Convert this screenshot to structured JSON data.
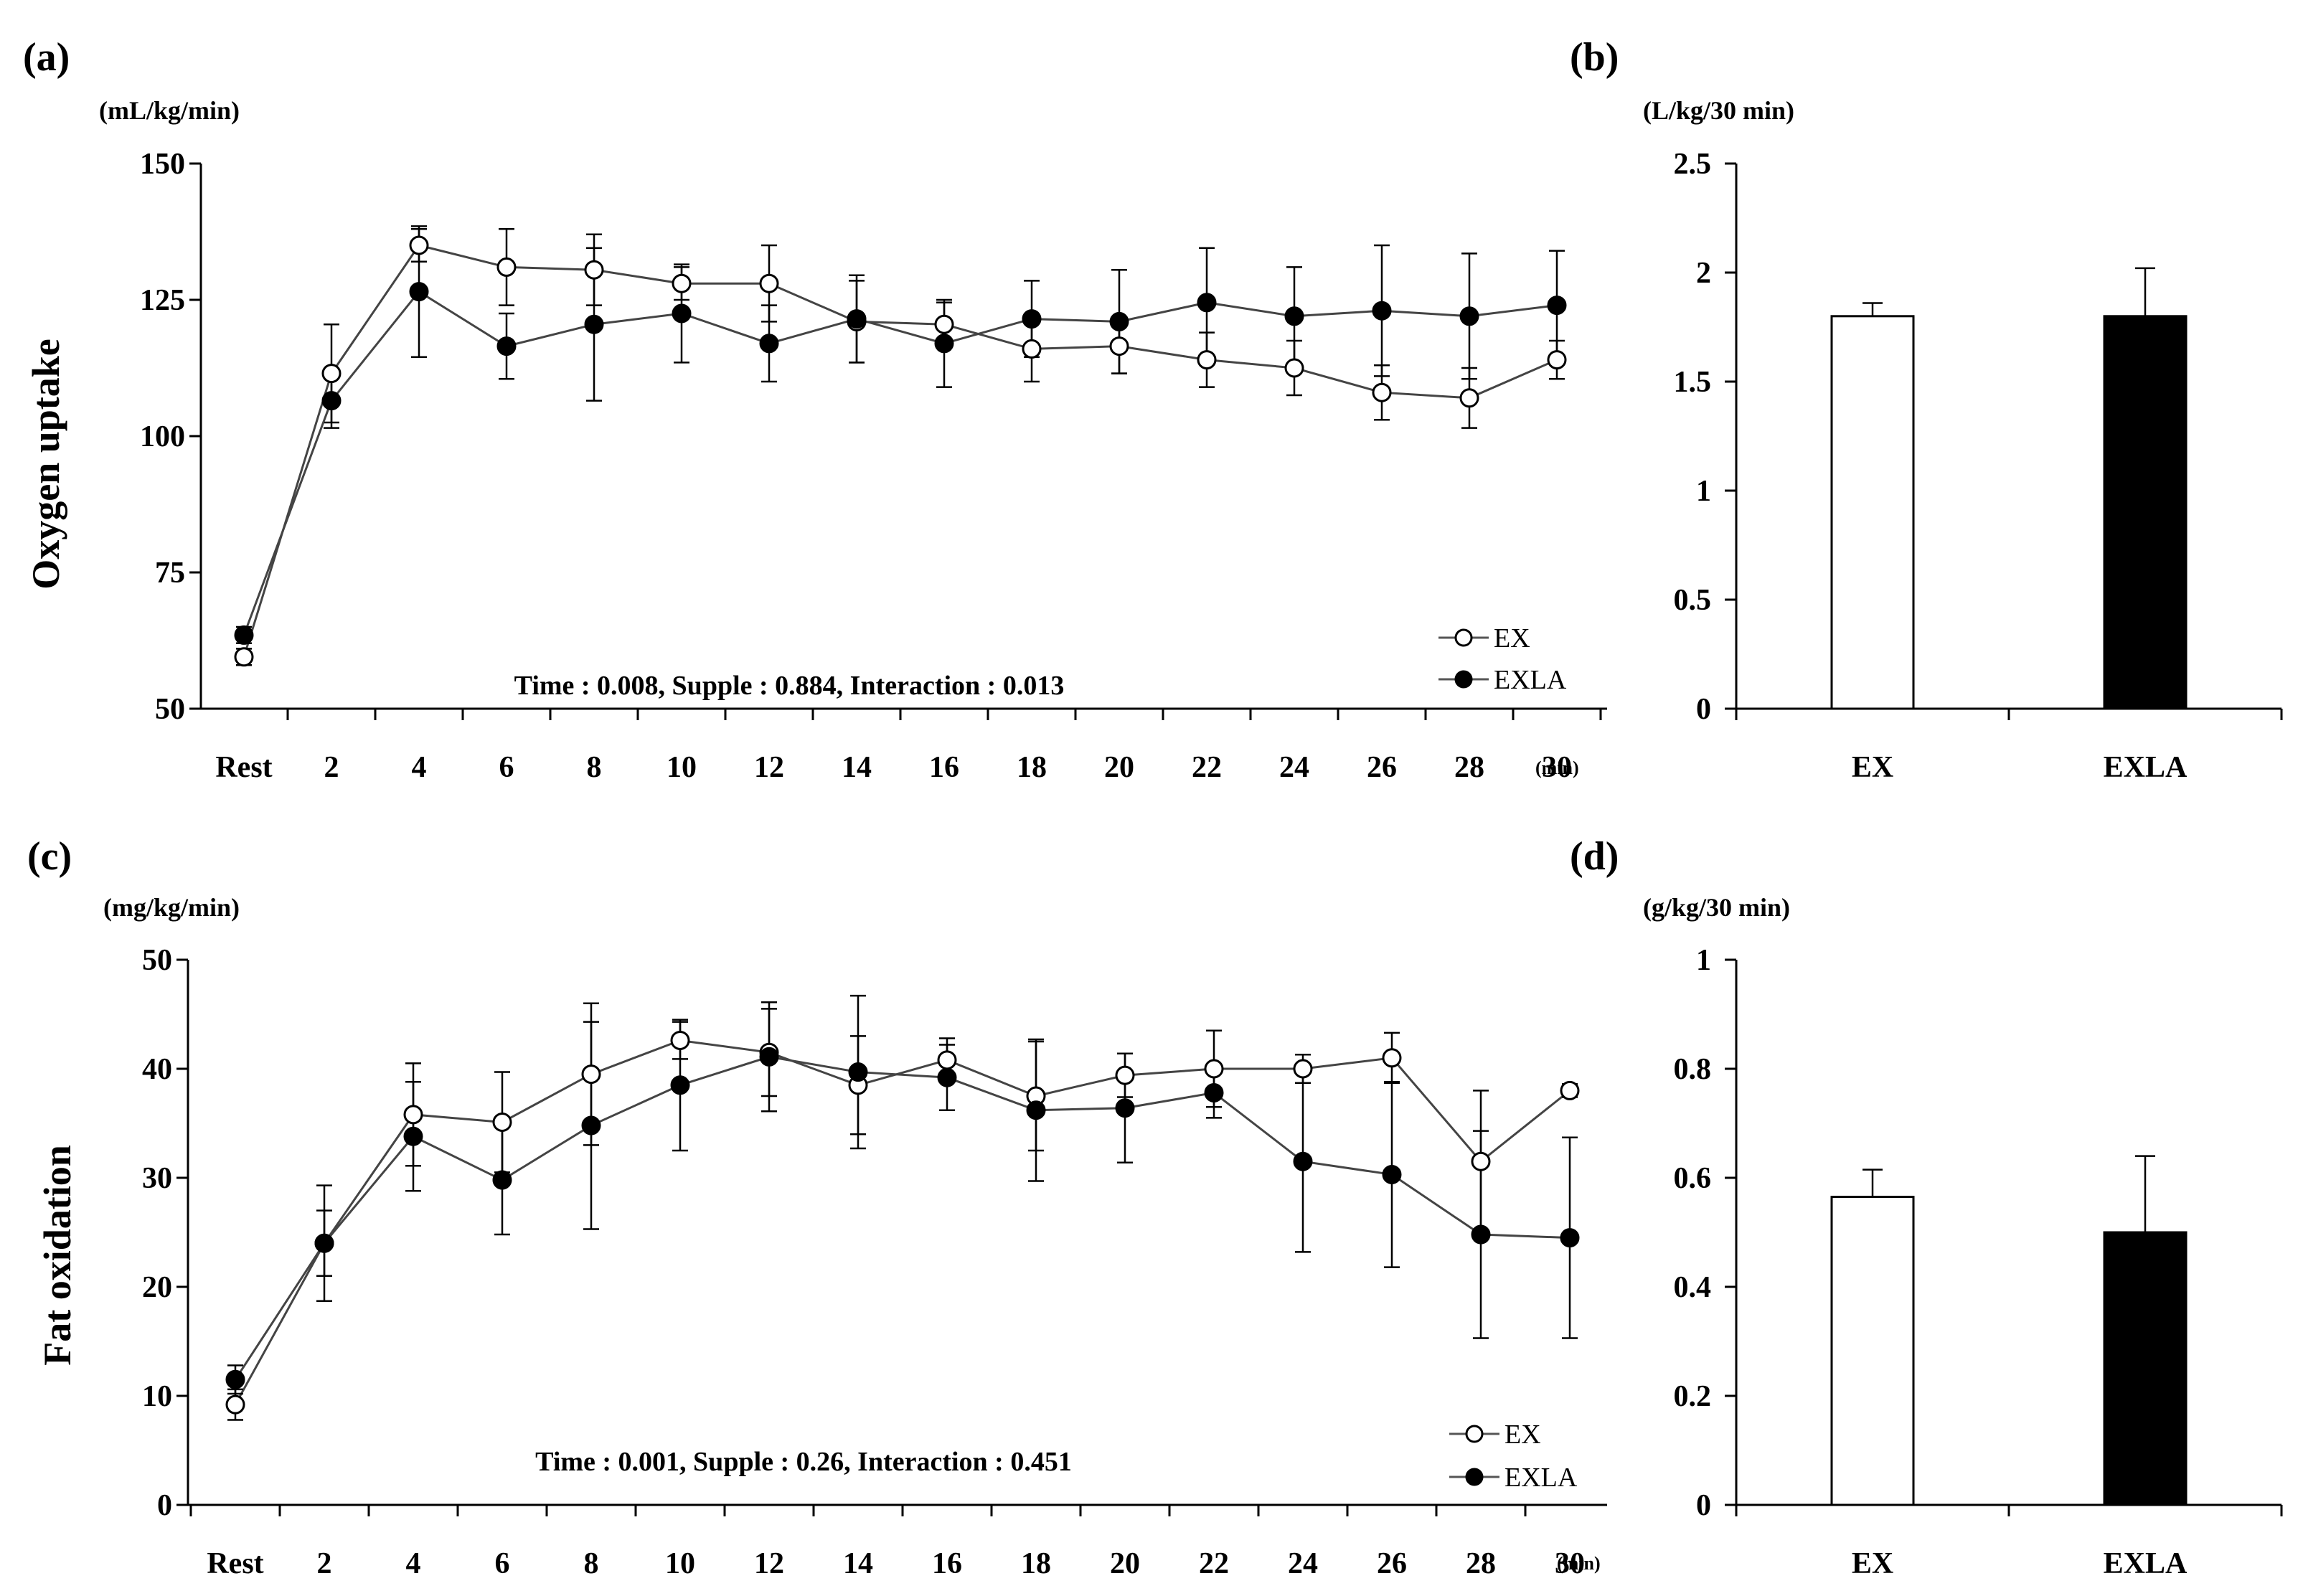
{
  "chart_data": [
    {
      "id": "a",
      "type": "line",
      "panel_label": "(a)",
      "unit_label": "(mL/kg/min)",
      "ylabel": "Oxygen uptake",
      "xlabel": "",
      "x_unit_label": "(min)",
      "categories": [
        "Rest",
        "2",
        "4",
        "6",
        "8",
        "10",
        "12",
        "14",
        "16",
        "18",
        "20",
        "22",
        "24",
        "26",
        "28",
        "30"
      ],
      "ylim": [
        50,
        150
      ],
      "yticks": [
        "50",
        "75",
        "100",
        "125",
        "150"
      ],
      "stats_text": "Time : 0.008,  Supple : 0.884,  Interaction : 0.013",
      "series": [
        {
          "name": "EX",
          "marker": "open",
          "values": [
            59.5,
            111.5,
            135,
            131,
            130.5,
            128,
            128,
            121,
            120.5,
            116,
            116.5,
            114,
            112.5,
            108,
            107,
            114
          ],
          "errors": [
            1.5,
            9,
            3,
            7,
            6.5,
            3,
            7,
            7.5,
            4,
            6,
            5,
            5,
            5,
            5,
            5.5,
            3.5
          ]
        },
        {
          "name": "EXLA",
          "marker": "filled",
          "values": [
            63.5,
            106.5,
            126.5,
            116.5,
            120.5,
            122.5,
            117,
            121.5,
            117,
            121.5,
            121,
            124.5,
            122,
            123,
            122,
            124
          ],
          "errors": [
            1.5,
            5,
            12,
            6,
            14,
            9,
            7,
            8,
            8,
            7,
            9.5,
            10,
            9,
            12,
            11.5,
            10
          ]
        }
      ],
      "legend": [
        "EX",
        "EXLA"
      ]
    },
    {
      "id": "b",
      "type": "bar",
      "panel_label": "(b)",
      "unit_label": "(L/kg/30 min)",
      "categories": [
        "EX",
        "EXLA"
      ],
      "ylim": [
        0,
        2.5
      ],
      "yticks": [
        "0",
        "0.5",
        "1",
        "1.5",
        "2",
        "2.5"
      ],
      "values": [
        1.8,
        1.8
      ],
      "errors": [
        0.06,
        0.22
      ],
      "colors": [
        "#ffffff",
        "#000000"
      ]
    },
    {
      "id": "c",
      "type": "line",
      "panel_label": "(c)",
      "unit_label": "(mg/kg/min)",
      "ylabel": "Fat oxidation",
      "xlabel": "",
      "x_unit_label": "(min)",
      "categories": [
        "Rest",
        "2",
        "4",
        "6",
        "8",
        "10",
        "12",
        "14",
        "16",
        "18",
        "20",
        "22",
        "24",
        "26",
        "28",
        "30"
      ],
      "ylim": [
        0,
        50
      ],
      "yticks": [
        "0",
        "10",
        "20",
        "30",
        "40",
        "50"
      ],
      "stats_text": "Time : 0.001,  Supple : 0.26,  Interaction : 0.451",
      "series": [
        {
          "name": "EX",
          "marker": "open",
          "values": [
            9.2,
            24,
            35.8,
            35.1,
            39.5,
            42.6,
            41.5,
            38.5,
            40.8,
            37.5,
            39.4,
            40,
            40,
            41,
            31.5,
            38
          ],
          "errors": [
            1.4,
            3,
            4.7,
            4.6,
            6.5,
            1.7,
            4,
            4.5,
            2,
            5,
            2,
            3.5,
            1.3,
            2.3,
            6.5,
            0.6
          ]
        },
        {
          "name": "EXLA",
          "marker": "filled",
          "values": [
            11.5,
            24,
            33.8,
            29.8,
            34.8,
            38.5,
            41.1,
            39.7,
            39.2,
            36.2,
            36.4,
            37.8,
            31.5,
            30.3,
            24.8,
            24.5
          ],
          "errors": [
            1.3,
            5.3,
            5,
            5,
            9.5,
            6,
            5,
            7,
            3,
            6.5,
            5,
            2.3,
            8.3,
            8.5,
            9.5,
            9.2
          ]
        }
      ],
      "legend": [
        "EX",
        "EXLA"
      ]
    },
    {
      "id": "d",
      "type": "bar",
      "panel_label": "(d)",
      "unit_label": "(g/kg/30 min)",
      "categories": [
        "EX",
        "EXLA"
      ],
      "ylim": [
        0,
        1
      ],
      "yticks": [
        "0",
        "0.2",
        "0.4",
        "0.6",
        "0.8",
        "1"
      ],
      "values": [
        0.565,
        0.5
      ],
      "errors": [
        0.05,
        0.14
      ],
      "colors": [
        "#ffffff",
        "#000000"
      ]
    }
  ]
}
